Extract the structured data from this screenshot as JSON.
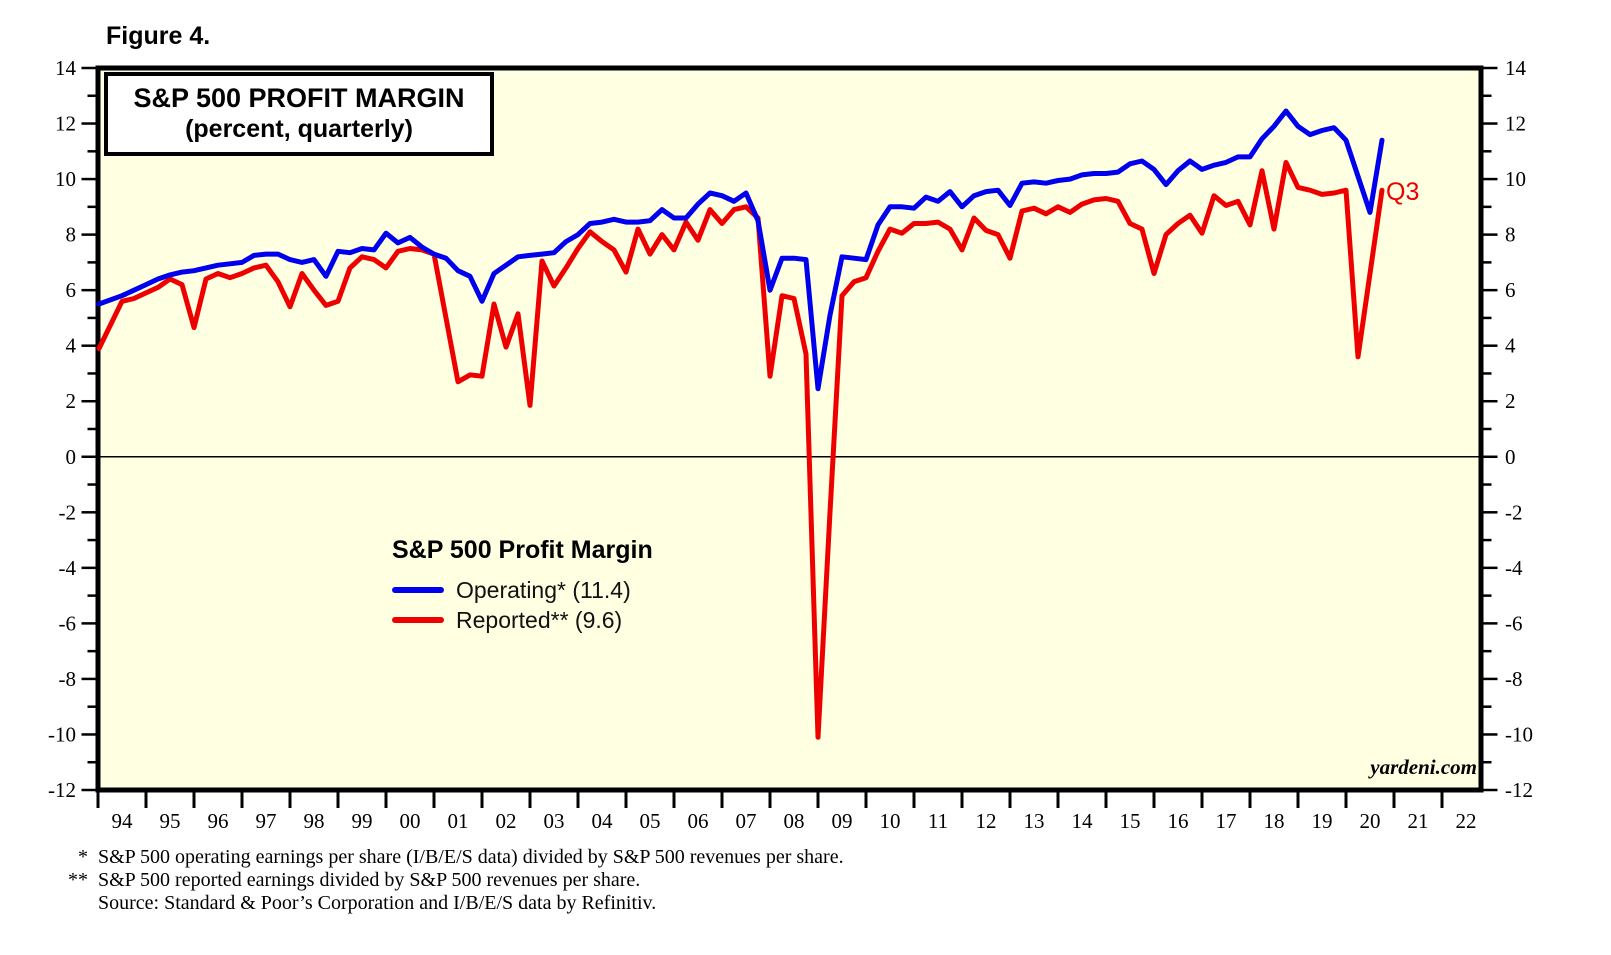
{
  "figure_label": "Figure 4.",
  "title_box": {
    "line1": "S&P 500 PROFIT MARGIN",
    "line2": "(percent, quarterly)"
  },
  "legend": {
    "title": "S&P 500 Profit Margin",
    "items": [
      {
        "label": "Operating* (11.4)",
        "color": "#0000EE"
      },
      {
        "label": "Reported** (9.6)",
        "color": "#EE0000"
      }
    ]
  },
  "annotations": {
    "last_point_label": "Q3",
    "watermark": "yardeni.com"
  },
  "footnotes": [
    {
      "marker": "*",
      "text": "S&P 500 operating earnings per share (I/B/E/S data) divided by S&P 500 revenues per share."
    },
    {
      "marker": "**",
      "text": "S&P 500 reported earnings divided by S&P 500 revenues per share."
    },
    {
      "marker": "",
      "text": "Source: Standard & Poor’s Corporation and I/B/E/S data by Refinitiv."
    }
  ],
  "chart_data": {
    "type": "line",
    "title": "S&P 500 PROFIT MARGIN (percent, quarterly)",
    "frequency": "quarterly",
    "x_start": "1994Q1",
    "x_end": "2020Q3",
    "x_year_labels": [
      "94",
      "95",
      "96",
      "97",
      "98",
      "99",
      "00",
      "01",
      "02",
      "03",
      "04",
      "05",
      "06",
      "07",
      "08",
      "09",
      "10",
      "11",
      "12",
      "13",
      "14",
      "15",
      "16",
      "17",
      "18",
      "19",
      "20",
      "21",
      "22"
    ],
    "ylim": [
      -12,
      14
    ],
    "y_tick_labels": [
      14,
      12,
      10,
      8,
      6,
      4,
      2,
      0,
      -2,
      -4,
      -6,
      -8,
      -10,
      -12
    ],
    "y_minor_tick_step": 1,
    "grid": false,
    "zero_line": true,
    "plot_background": "#FFFFE1",
    "legend_position": "center-left inside plot",
    "series": [
      {
        "name": "Operating",
        "latest_value": 11.4,
        "color": "#0000EE",
        "values": [
          5.5,
          5.8,
          6.0,
          6.2,
          6.4,
          6.55,
          6.65,
          6.7,
          6.8,
          6.9,
          6.95,
          7.0,
          7.25,
          7.3,
          7.3,
          7.1,
          7.0,
          7.1,
          6.5,
          7.4,
          7.35,
          7.5,
          7.45,
          8.05,
          7.7,
          7.9,
          7.55,
          7.3,
          7.15,
          6.7,
          6.5,
          5.6,
          6.6,
          6.9,
          7.2,
          7.25,
          7.3,
          7.35,
          7.75,
          8.0,
          8.4,
          8.45,
          8.55,
          8.45,
          8.45,
          8.5,
          8.9,
          8.6,
          8.6,
          9.1,
          9.5,
          9.4,
          9.2,
          9.5,
          8.5,
          6.0,
          7.15,
          7.15,
          7.1,
          2.45,
          5.1,
          7.2,
          7.15,
          7.1,
          8.35,
          9.0,
          9.0,
          8.95,
          9.35,
          9.2,
          9.55,
          9.0,
          9.4,
          9.55,
          9.6,
          9.05,
          9.85,
          9.9,
          9.85,
          9.95,
          10.0,
          10.15,
          10.2,
          10.2,
          10.25,
          10.55,
          10.65,
          10.35,
          9.8,
          10.3,
          10.65,
          10.35,
          10.5,
          10.6,
          10.8,
          10.8,
          11.45,
          11.9,
          12.45,
          11.9,
          11.6,
          11.75,
          11.85,
          11.4,
          10.1,
          8.8,
          11.4
        ]
      },
      {
        "name": "Reported",
        "latest_value": 9.6,
        "color": "#EE0000",
        "values": [
          3.9,
          5.6,
          5.7,
          5.9,
          6.1,
          6.4,
          6.2,
          4.65,
          6.4,
          6.6,
          6.45,
          6.6,
          6.8,
          6.9,
          6.3,
          5.4,
          6.6,
          6.0,
          5.45,
          5.6,
          6.8,
          7.2,
          7.1,
          6.8,
          7.4,
          7.5,
          7.45,
          7.3,
          5.0,
          2.7,
          2.95,
          2.9,
          5.5,
          3.95,
          5.15,
          1.85,
          7.05,
          6.15,
          6.8,
          7.5,
          8.1,
          7.75,
          7.45,
          6.65,
          8.2,
          7.3,
          8.0,
          7.45,
          8.45,
          7.8,
          8.9,
          8.4,
          8.9,
          9.0,
          8.6,
          2.9,
          5.8,
          5.7,
          3.7,
          -10.1,
          -2.0,
          5.8,
          6.3,
          6.45,
          7.4,
          8.2,
          8.05,
          8.4,
          8.4,
          8.45,
          8.2,
          7.45,
          8.6,
          8.15,
          8.0,
          7.15,
          8.85,
          8.95,
          8.75,
          9.0,
          8.8,
          9.1,
          9.25,
          9.3,
          9.2,
          8.4,
          8.2,
          6.6,
          8.0,
          8.4,
          8.7,
          8.05,
          9.4,
          9.05,
          9.2,
          8.35,
          10.3,
          8.2,
          10.6,
          9.7,
          9.6,
          9.45,
          9.5,
          9.6,
          3.6,
          6.6,
          9.6
        ]
      }
    ]
  }
}
